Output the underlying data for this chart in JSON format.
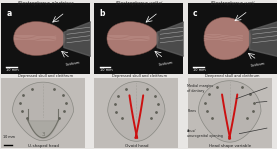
{
  "title_species": [
    "Electrophorus electricus",
    "Electrophorus voltai",
    "Electrophorus varii"
  ],
  "panel_labels_top": [
    "a",
    "b",
    "c"
  ],
  "top_captions": [
    "Depressed skull and cleithrum",
    "Depressed skull and cleithrum",
    "Deepened skull and cleithrum"
  ],
  "bottom_labels": [
    "U-shaped head",
    "Ovoid head",
    "Head shape variable"
  ],
  "annotations": [
    "Medial margins\nof dentary",
    "Pores",
    "Anus/\nunurogenital opening"
  ],
  "background_color": "#111111",
  "skull_color": "#c08880",
  "skull_edge": "#7a5048",
  "bottom_bg": "#b8b4b0",
  "panel_bg": "#c0bcb8",
  "fig_bg": "#e8e6e4",
  "text_color": "#222222",
  "cleithrum_color": "#888888",
  "red_line_color": "#cc1111",
  "annotation_line_color": "#444444"
}
